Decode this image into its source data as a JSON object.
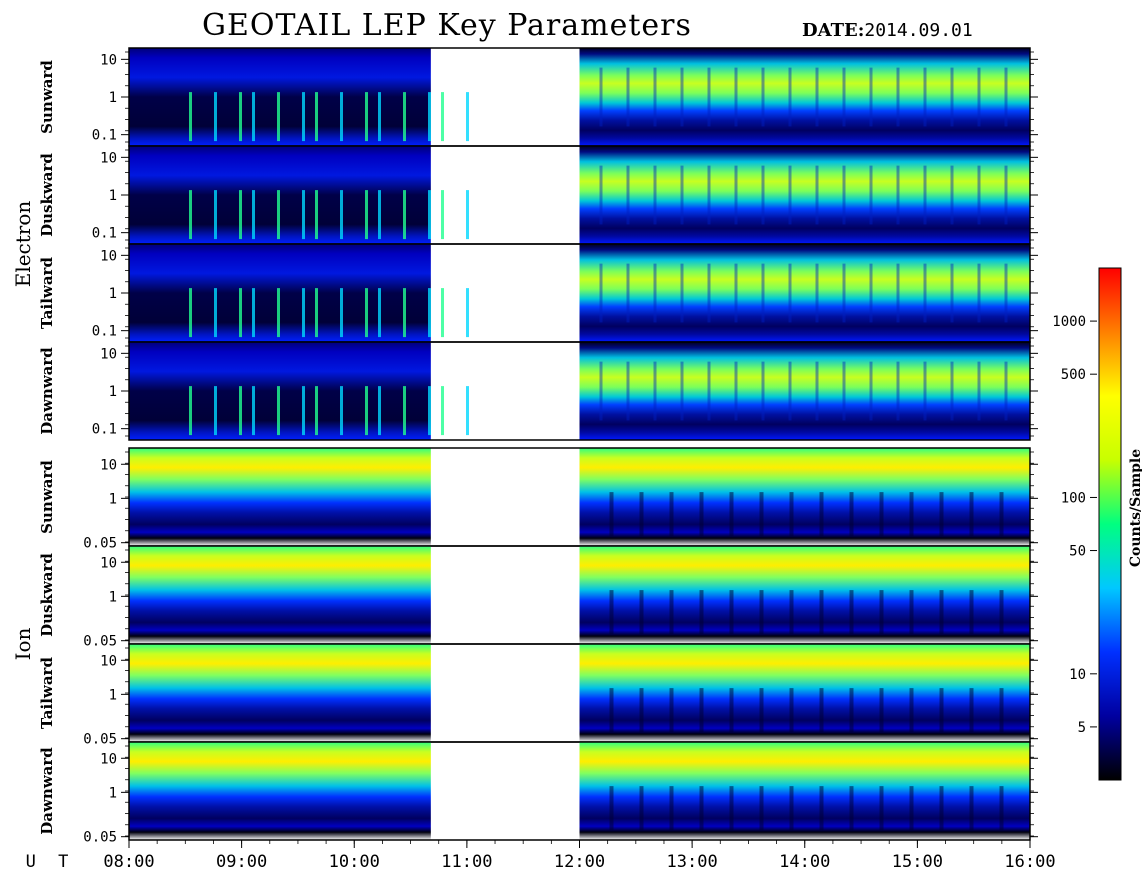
{
  "header": {
    "title": "GEOTAIL LEP Key Parameters",
    "date_label": "DATE:",
    "date_value": "2014.09.01"
  },
  "chart_data": {
    "type": "heatmap",
    "x_axis_label": "U T",
    "x_ticks": [
      "08:00",
      "09:00",
      "10:00",
      "11:00",
      "12:00",
      "13:00",
      "14:00",
      "15:00",
      "16:00"
    ],
    "x_range_hours": [
      8,
      16
    ],
    "data_gap_hours": [
      10.68,
      12.0
    ],
    "groups": [
      {
        "name": "Electron",
        "y_scale": "log",
        "y_range": [
          0.05,
          20
        ],
        "y_ticks": [
          "10",
          "1",
          "0.1"
        ],
        "panels": [
          "Sunward",
          "Duskward",
          "Tailward",
          "Dawnward"
        ]
      },
      {
        "name": "Ion",
        "y_scale": "log",
        "y_range": [
          0.04,
          30
        ],
        "y_ticks": [
          "10",
          "1",
          "0.05"
        ],
        "panels": [
          "Sunward",
          "Duskward",
          "Tailward",
          "Dawnward"
        ]
      }
    ],
    "colorbar": {
      "label": "Counts/Sample",
      "scale": "log",
      "range": [
        2.5,
        2000
      ],
      "ticks": [
        "1000",
        "500",
        "100",
        "50",
        "10",
        "5"
      ],
      "tick_values": [
        1000,
        500,
        100,
        50,
        10,
        5
      ],
      "colormap": [
        "#000000",
        "#0000a0",
        "#0030ff",
        "#00c8ff",
        "#00ff80",
        "#c8ff00",
        "#ffff00",
        "#ff8000",
        "#ff0000"
      ]
    }
  }
}
